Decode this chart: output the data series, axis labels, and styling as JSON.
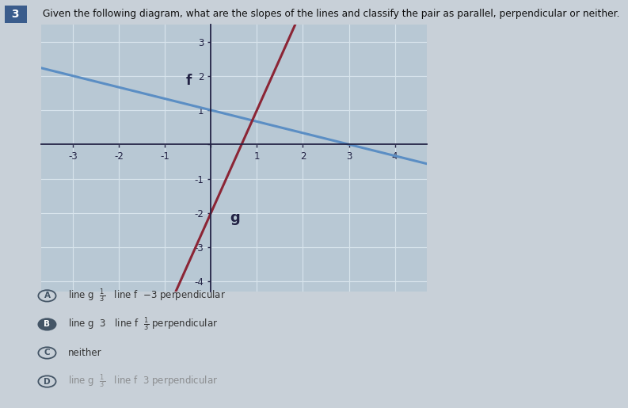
{
  "title": "Given the following diagram, what are the slopes of the lines and classify the pair as parallel, perpendicular or neither.",
  "question_number": "3",
  "bg_color": "#c8d0d8",
  "graph_bg_color": "#b8c8d4",
  "grid_color": "#d8e4ec",
  "axis_color": "#222244",
  "line_f_color": "#5b8ec4",
  "line_g_color": "#8b2535",
  "line_f_slope": -0.3333,
  "line_f_intercept": 1.0,
  "line_g_slope": 3.0,
  "line_g_intercept": -2.0,
  "xmin": -3.7,
  "xmax": 4.7,
  "ymin": -4.3,
  "ymax": 3.5,
  "tick_fontsize": 8.5,
  "label_fontsize": 12,
  "option_texts": [
    "line g  1/3   line f  -3 perpendicular",
    "line g  3   line f  1/3 perpendicular",
    "neither",
    "line g  1/3   line f  3 perpendicular"
  ],
  "option_labels": [
    "A",
    "B",
    "C",
    "D"
  ],
  "selected_option": 1
}
